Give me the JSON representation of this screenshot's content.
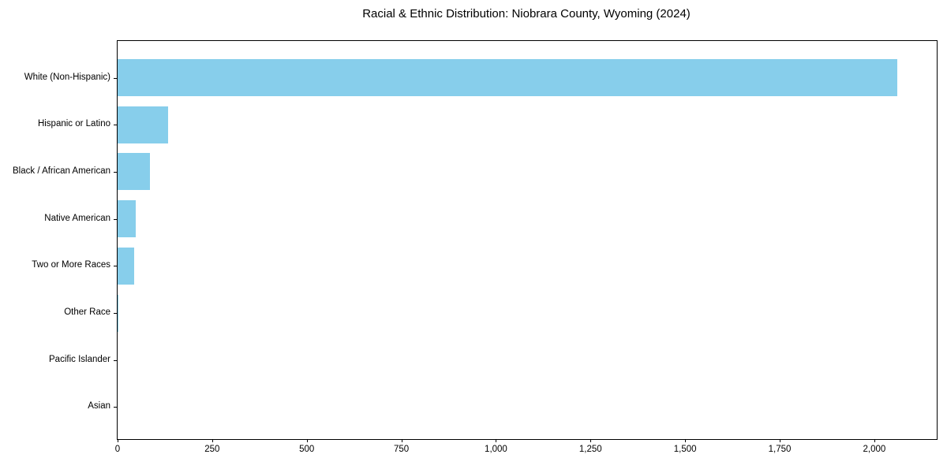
{
  "chart_data": {
    "type": "bar",
    "orientation": "horizontal",
    "title": "Racial & Ethnic Distribution: Niobrara County, Wyoming (2024)",
    "categories": [
      "White (Non-Hispanic)",
      "Hispanic or Latino",
      "Black / African American",
      "Native American",
      "Two or More Races",
      "Other Race",
      "Pacific Islander",
      "Asian"
    ],
    "values": [
      2060,
      133,
      85,
      49,
      44,
      2,
      0,
      0
    ],
    "xlabel": "",
    "ylabel": "",
    "xlim": [
      0,
      2165
    ],
    "x_ticks": [
      0,
      250,
      500,
      750,
      1000,
      1250,
      1500,
      1750,
      2000
    ],
    "x_tick_labels": [
      "0",
      "250",
      "500",
      "750",
      "1,000",
      "1,250",
      "1,500",
      "1,750",
      "2,000"
    ],
    "grid": false,
    "legend": false,
    "bar_color": "#87ceeb",
    "spine_color": "#000000",
    "text_color": "#000000",
    "background_color": "#ffffff"
  }
}
